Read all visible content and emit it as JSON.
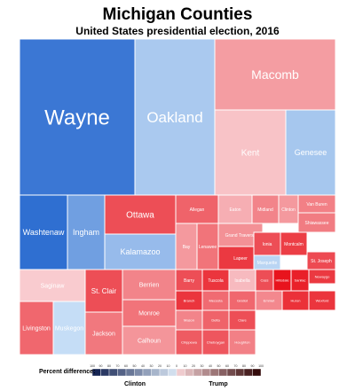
{
  "chart_data": {
    "type": "treemap",
    "title": "Michigan Counties",
    "subtitle": "United States presidential election, 2016",
    "legend": {
      "title": "Percent difference:",
      "left_label": "Clinton",
      "right_label": "Trump",
      "ticks": [
        "100",
        "90",
        "80",
        "70",
        "60",
        "50",
        "40",
        "30",
        "20",
        "10",
        "0",
        "10",
        "20",
        "30",
        "40",
        "50",
        "60",
        "70",
        "80",
        "90",
        "100"
      ]
    },
    "palette": {
      "clinton_strong": "#2f6fd1",
      "clinton_light": "#c9e0f7",
      "trump_light": "#f9cfd3",
      "trump_strong": "#e8141d"
    },
    "counties": [
      {
        "name": "Wayne",
        "margin": -37
      },
      {
        "name": "Oakland",
        "margin": -8
      },
      {
        "name": "Macomb",
        "margin": 12
      },
      {
        "name": "Kent",
        "margin": 3
      },
      {
        "name": "Genesee",
        "margin": -9
      },
      {
        "name": "Washtenaw",
        "margin": -41
      },
      {
        "name": "Ingham",
        "margin": -23
      },
      {
        "name": "Ottawa",
        "margin": 31
      },
      {
        "name": "Kalamazoo",
        "margin": -13
      },
      {
        "name": "Saginaw",
        "margin": 1
      },
      {
        "name": "Muskegon",
        "margin": -1
      },
      {
        "name": "St. Clair",
        "margin": 31
      },
      {
        "name": "Livingston",
        "margin": 25
      },
      {
        "name": "Berrien",
        "margin": 18
      },
      {
        "name": "Monroe",
        "margin": 22
      },
      {
        "name": "Jackson",
        "margin": 21
      },
      {
        "name": "Calhoun",
        "margin": 14
      },
      {
        "name": "Allegan",
        "margin": 26
      },
      {
        "name": "Eaton",
        "margin": 8
      },
      {
        "name": "Bay",
        "margin": 13
      },
      {
        "name": "Lenawee",
        "margin": 22
      },
      {
        "name": "Grand Traverse",
        "margin": 15
      },
      {
        "name": "Lapeer",
        "margin": 36
      },
      {
        "name": "Midland",
        "margin": 18
      },
      {
        "name": "Clinton",
        "margin": 13
      },
      {
        "name": "Van Buren",
        "margin": 19
      },
      {
        "name": "Shiawassee",
        "margin": 20
      },
      {
        "name": "Marquette",
        "margin": -4
      },
      {
        "name": "Ionia",
        "margin": 31
      },
      {
        "name": "Montcalm",
        "margin": 35
      },
      {
        "name": "St. Joseph",
        "margin": 32
      },
      {
        "name": "Barry",
        "margin": 31
      },
      {
        "name": "Tuscola",
        "margin": 37
      },
      {
        "name": "Isabella",
        "margin": 5
      },
      {
        "name": "Cass",
        "margin": 31
      },
      {
        "name": "Hillsdale",
        "margin": 45
      },
      {
        "name": "Sanilac",
        "margin": 42
      },
      {
        "name": "Newaygo",
        "margin": 36
      },
      {
        "name": "Branch",
        "margin": 37
      },
      {
        "name": "Mecosta",
        "margin": 24
      },
      {
        "name": "Gratiot",
        "margin": 25
      },
      {
        "name": "Emmet",
        "margin": 17
      },
      {
        "name": "Huron",
        "margin": 38
      },
      {
        "name": "Wexford",
        "margin": 37
      },
      {
        "name": "Mason",
        "margin": 18
      },
      {
        "name": "Delta",
        "margin": 26
      },
      {
        "name": "Clare",
        "margin": 31
      },
      {
        "name": "Houghton",
        "margin": 19
      },
      {
        "name": "Chippewa",
        "margin": 28
      },
      {
        "name": "Cheboygan",
        "margin": 29
      }
    ]
  }
}
